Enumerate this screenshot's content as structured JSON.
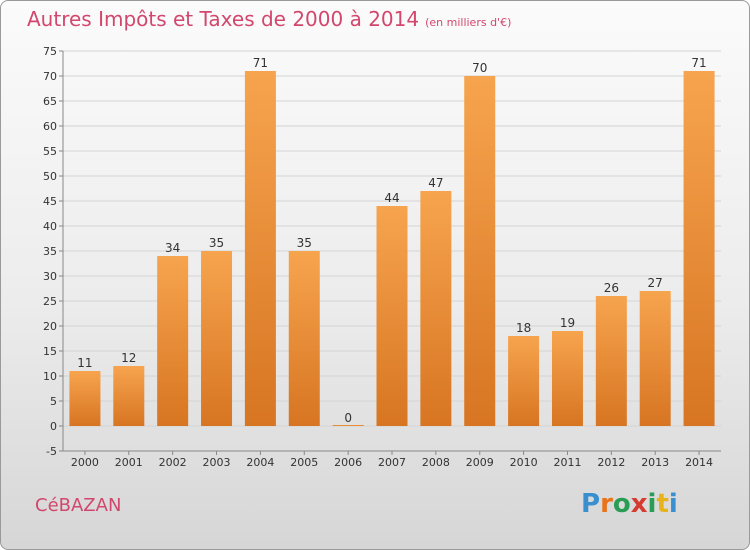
{
  "title": {
    "main": "Autres Impôts et Taxes de 2000 à 2014",
    "unit": "(en milliers d'€)"
  },
  "commune": "CéBAZAN",
  "logo": {
    "text": "Proxiti",
    "letter_colors": [
      "#3a8fd0",
      "#e8731a",
      "#2a9d55",
      "#d63b2f",
      "#2a9d55",
      "#e8b21a",
      "#3a8fd0"
    ]
  },
  "colors": {
    "bar_top": "#f7a44e",
    "bar_bottom": "#d77522",
    "accent": "#d2476d"
  },
  "chart_data": {
    "type": "bar",
    "categories": [
      "2000",
      "2001",
      "2002",
      "2003",
      "2004",
      "2005",
      "2006",
      "2007",
      "2008",
      "2009",
      "2010",
      "2011",
      "2012",
      "2013",
      "2014"
    ],
    "values": [
      11,
      12,
      34,
      35,
      71,
      35,
      0,
      44,
      47,
      70,
      18,
      19,
      26,
      27,
      71
    ],
    "ylim": [
      -5,
      75
    ],
    "yticks": [
      -5,
      0,
      5,
      10,
      15,
      20,
      25,
      30,
      35,
      40,
      45,
      50,
      55,
      60,
      65,
      70,
      75
    ],
    "grid": true,
    "xlabel": "",
    "ylabel": ""
  }
}
